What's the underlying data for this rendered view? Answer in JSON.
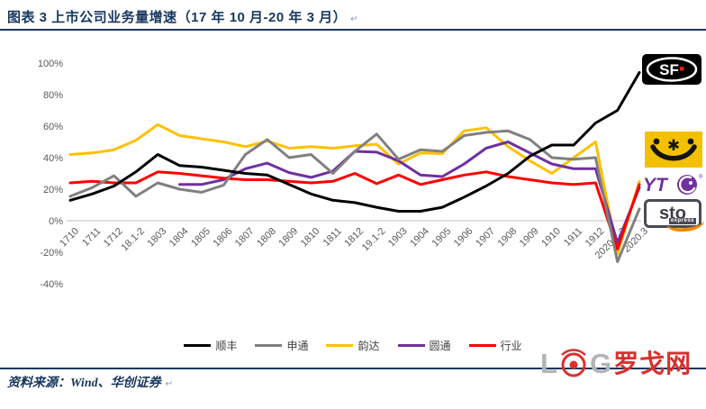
{
  "figure": {
    "title": "图表 3  上市公司业务量增速（17 年 10 月-20 年 3 月）",
    "return_mark": "↵",
    "source": "资料来源：Wind、华创证券"
  },
  "colors": {
    "navy": "#17375E",
    "axis_text": "#595959",
    "axis_line": "#C9C9C9",
    "sf_black": "#000000",
    "sto_gray": "#808080",
    "yunda_yellow": "#FFC000",
    "yto_purple": "#7030A0",
    "industry_red": "#FF0000"
  },
  "logos": {
    "sf": {
      "text": "SF"
    },
    "yto": {
      "text": "YT",
      "reg": "®"
    },
    "sto": {
      "text": "sto",
      "sub": "express"
    },
    "log": {
      "l": "L",
      "g": "G",
      "cn": "罗戈网"
    }
  },
  "chart_data": {
    "type": "line",
    "title": "上市公司业务量增速（17年10月-20年3月）",
    "categories": [
      "1710",
      "1711",
      "1712",
      "18.1-2",
      "1803",
      "1804",
      "1805",
      "1806",
      "1807",
      "1808",
      "1809",
      "1810",
      "1811",
      "1812",
      "19.1-2",
      "1903",
      "1904",
      "1905",
      "1906",
      "1907",
      "1908",
      "1909",
      "1910",
      "1911",
      "1912",
      "2020.1-2",
      "2020.3"
    ],
    "series": [
      {
        "name": "顺丰",
        "color": "#000000",
        "values": [
          13,
          17,
          22,
          31,
          42,
          35,
          34,
          32,
          30,
          29,
          23,
          17,
          13,
          11.5,
          8.5,
          6,
          6,
          8.5,
          15,
          22,
          30,
          41,
          48,
          48,
          62,
          70,
          94
        ]
      },
      {
        "name": "申通",
        "color": "#808080",
        "values": [
          15.5,
          21,
          28.5,
          15.5,
          24,
          20,
          18,
          22.5,
          42,
          51.5,
          40,
          42,
          30,
          44,
          55,
          39,
          45,
          44,
          54,
          56,
          57,
          51.5,
          40,
          39,
          40,
          -26,
          7.5
        ]
      },
      {
        "name": "韵达",
        "color": "#FFC000",
        "values": [
          42,
          43,
          45,
          51,
          61,
          54,
          52,
          50,
          47,
          50.5,
          46,
          47,
          46,
          47.5,
          48.5,
          36,
          43,
          42.5,
          57,
          59,
          47,
          38,
          30,
          40,
          50,
          -21,
          25
        ]
      },
      {
        "name": "圆通",
        "color": "#7030A0",
        "values": [
          null,
          null,
          null,
          null,
          null,
          23,
          23,
          26,
          33,
          36.5,
          30.5,
          27.5,
          31.5,
          44,
          43.5,
          38,
          29,
          28,
          36,
          46,
          50,
          43,
          36,
          33,
          33,
          -14,
          21
        ]
      },
      {
        "name": "行业",
        "color": "#FF0000",
        "values": [
          24,
          25,
          24,
          24,
          31,
          30,
          28.5,
          27,
          26,
          26,
          25,
          24,
          25,
          30,
          23.5,
          29,
          23,
          26,
          29,
          31,
          28,
          26,
          24,
          23,
          24,
          -18,
          23
        ]
      }
    ],
    "ylim": [
      -40,
      100
    ],
    "yticks": [
      100,
      80,
      60,
      40,
      20,
      0,
      -20,
      -40
    ],
    "ytick_format": "%",
    "xlabel": "",
    "ylabel": "",
    "grid": false,
    "legend_position": "bottom"
  }
}
